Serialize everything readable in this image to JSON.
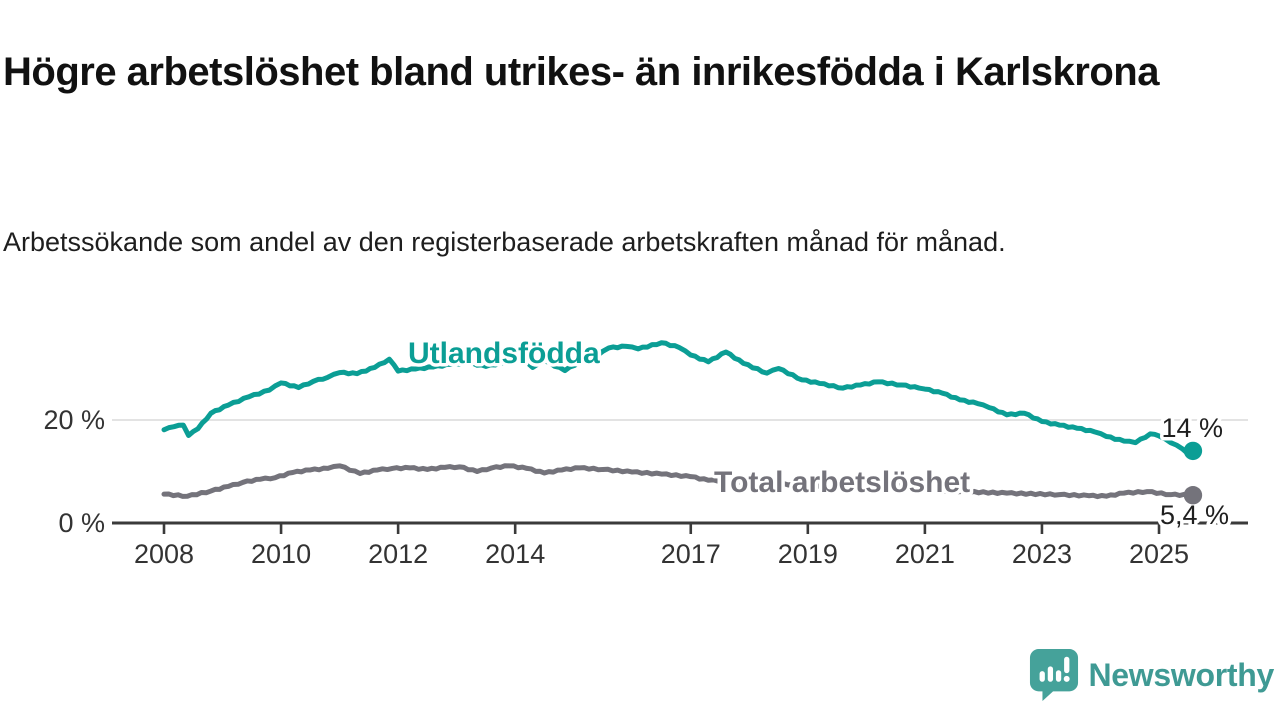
{
  "header": {
    "title": "Högre arbetslöshet bland utrikes- än inrikesfödda i Karlskrona",
    "subtitle": "Arbetssökande som andel av den registerbaserade arbetskraften månad för månad."
  },
  "chart_data": {
    "type": "line",
    "title": "Högre arbetslöshet bland utrikes- än inrikesfödda i Karlskrona",
    "xlabel": "",
    "ylabel": "%",
    "xlim": [
      2007.1,
      2026.5
    ],
    "ylim": [
      0,
      44
    ],
    "grid": "single horizontal gridline at 20",
    "gridlines": [
      20
    ],
    "x_ticks": [
      "2008",
      "2010",
      "2012",
      "2014",
      "2017",
      "2019",
      "2021",
      "2023",
      "2025"
    ],
    "x_tick_values": [
      2008,
      2010,
      2012,
      2014,
      2017,
      2019,
      2021,
      2023,
      2025
    ],
    "y_ticks": [
      {
        "value": 0,
        "label": "0 %"
      },
      {
        "value": 20,
        "label": "20 %"
      }
    ],
    "colors": {
      "axis": "#3a3a3a",
      "grid": "#dadada",
      "tick_text": "#333333",
      "halo": "#ffffff"
    },
    "series": [
      {
        "name": "Utlandsfödda",
        "color": "#0b9e95",
        "end_label": "14 %",
        "last_value": 14,
        "points": [
          [
            2008.0,
            18.1
          ],
          [
            2008.17,
            18.7
          ],
          [
            2008.33,
            19.0
          ],
          [
            2008.42,
            17.0
          ],
          [
            2008.58,
            18.3
          ],
          [
            2008.8,
            21.3
          ],
          [
            2009.1,
            22.9
          ],
          [
            2009.45,
            24.5
          ],
          [
            2009.8,
            25.8
          ],
          [
            2010.0,
            27.2
          ],
          [
            2010.3,
            26.3
          ],
          [
            2010.55,
            27.5
          ],
          [
            2010.8,
            28.3
          ],
          [
            2011.0,
            29.2
          ],
          [
            2011.3,
            29.0
          ],
          [
            2011.6,
            30.2
          ],
          [
            2011.85,
            31.8
          ],
          [
            2012.0,
            29.5
          ],
          [
            2012.3,
            29.9
          ],
          [
            2012.6,
            30.3
          ],
          [
            2012.9,
            30.8
          ],
          [
            2013.2,
            31.1
          ],
          [
            2013.5,
            30.4
          ],
          [
            2013.9,
            31.4
          ],
          [
            2014.1,
            32.0
          ],
          [
            2014.3,
            30.2
          ],
          [
            2014.5,
            31.5
          ],
          [
            2014.85,
            29.6
          ],
          [
            2015.1,
            31.3
          ],
          [
            2015.4,
            32.5
          ],
          [
            2015.6,
            34.0
          ],
          [
            2015.9,
            34.3
          ],
          [
            2016.1,
            33.8
          ],
          [
            2016.5,
            35.0
          ],
          [
            2016.8,
            34.1
          ],
          [
            2017.0,
            32.6
          ],
          [
            2017.3,
            31.3
          ],
          [
            2017.6,
            33.2
          ],
          [
            2017.9,
            31.0
          ],
          [
            2018.3,
            29.1
          ],
          [
            2018.5,
            30.0
          ],
          [
            2018.9,
            27.8
          ],
          [
            2019.2,
            27.1
          ],
          [
            2019.6,
            26.2
          ],
          [
            2019.9,
            26.8
          ],
          [
            2020.2,
            27.4
          ],
          [
            2020.6,
            26.8
          ],
          [
            2020.9,
            26.2
          ],
          [
            2021.0,
            26.0
          ],
          [
            2021.3,
            25.2
          ],
          [
            2021.6,
            23.9
          ],
          [
            2021.9,
            23.2
          ],
          [
            2022.1,
            22.4
          ],
          [
            2022.4,
            21.0
          ],
          [
            2022.7,
            21.3
          ],
          [
            2023.0,
            19.7
          ],
          [
            2023.3,
            19.0
          ],
          [
            2023.6,
            18.4
          ],
          [
            2023.9,
            17.7
          ],
          [
            2024.1,
            16.8
          ],
          [
            2024.4,
            15.9
          ],
          [
            2024.6,
            15.6
          ],
          [
            2024.85,
            17.3
          ],
          [
            2025.0,
            16.9
          ],
          [
            2025.2,
            15.6
          ],
          [
            2025.4,
            14.4
          ],
          [
            2025.5,
            13.4
          ],
          [
            2025.58,
            14.0
          ]
        ]
      },
      {
        "name": "Total arbetslöshet",
        "color": "#74737b",
        "end_label": "5,4 %",
        "last_value": 5.4,
        "points": [
          [
            2008.0,
            5.6
          ],
          [
            2008.4,
            5.2
          ],
          [
            2008.8,
            6.2
          ],
          [
            2009.1,
            7.1
          ],
          [
            2009.35,
            7.9
          ],
          [
            2009.65,
            8.5
          ],
          [
            2009.9,
            8.8
          ],
          [
            2010.2,
            9.8
          ],
          [
            2010.5,
            10.3
          ],
          [
            2010.8,
            10.6
          ],
          [
            2011.0,
            11.1
          ],
          [
            2011.35,
            9.6
          ],
          [
            2011.65,
            10.3
          ],
          [
            2011.9,
            10.6
          ],
          [
            2012.2,
            10.7
          ],
          [
            2012.5,
            10.4
          ],
          [
            2012.8,
            10.8
          ],
          [
            2013.05,
            10.9
          ],
          [
            2013.35,
            10.0
          ],
          [
            2013.6,
            10.7
          ],
          [
            2013.9,
            11.1
          ],
          [
            2014.2,
            10.6
          ],
          [
            2014.5,
            9.7
          ],
          [
            2014.8,
            10.3
          ],
          [
            2015.1,
            10.7
          ],
          [
            2015.5,
            10.4
          ],
          [
            2016.0,
            9.9
          ],
          [
            2016.5,
            9.5
          ],
          [
            2017.0,
            9.0
          ],
          [
            2017.3,
            8.3
          ],
          [
            2018.0,
            7.9
          ],
          [
            2018.5,
            7.6
          ],
          [
            2019.0,
            7.3
          ],
          [
            2019.5,
            7.1
          ],
          [
            2020.0,
            7.3
          ],
          [
            2020.4,
            7.7
          ],
          [
            2020.8,
            7.0
          ],
          [
            2021.0,
            6.4
          ],
          [
            2021.6,
            6.1
          ],
          [
            2022.4,
            5.8
          ],
          [
            2023.3,
            5.5
          ],
          [
            2023.8,
            5.3
          ],
          [
            2024.1,
            5.2
          ],
          [
            2024.4,
            5.8
          ],
          [
            2024.8,
            6.1
          ],
          [
            2025.2,
            5.5
          ],
          [
            2025.58,
            5.4
          ]
        ]
      }
    ]
  },
  "footer": {
    "brand": "Newsworthy",
    "brand_text_color": "#3f9a94",
    "logo_bubble_color": "#45a29a",
    "logo_icon": "speech-bubble-with-bar-chart-and-exclamation"
  }
}
